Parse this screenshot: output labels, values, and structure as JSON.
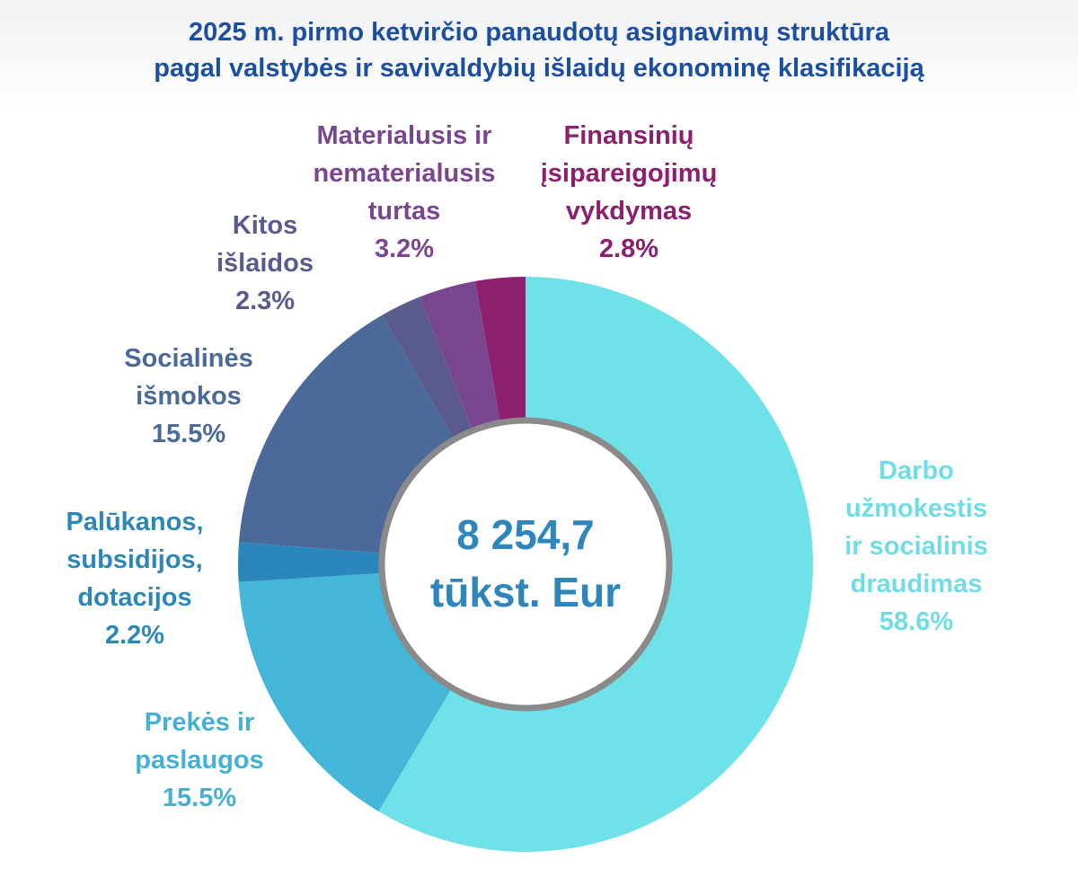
{
  "title": {
    "line1": "2025 m. pirmo ketvirčio panaudotų asignavimų struktūra",
    "line2": "pagal valstybės ir savivaldybių išlaidų ekonominę klasifikaciją"
  },
  "center": {
    "value": "8 254,7",
    "unit": "tūkst. Eur"
  },
  "chart_data": {
    "type": "pie",
    "variant": "donut",
    "unit": "%",
    "start_angle_deg": 0,
    "direction": "clockwise",
    "slices": [
      {
        "label_lines": [
          "Darbo",
          "užmokestis",
          "ir socialinis",
          "draudimas"
        ],
        "value": 58.6,
        "value_label": "58.6%",
        "color": "#6ee2e8",
        "text_color": "#6fdde6"
      },
      {
        "label_lines": [
          "Prekės ir",
          "paslaugos"
        ],
        "value": 15.5,
        "value_label": "15.5%",
        "color": "#44b6d8",
        "text_color": "#44b1d3"
      },
      {
        "label_lines": [
          "Palūkanos,",
          "subsidijos,",
          "dotacijos"
        ],
        "value": 2.2,
        "value_label": "2.2%",
        "color": "#2b86bb",
        "text_color": "#2d86b8"
      },
      {
        "label_lines": [
          "Socialinės",
          "išmokos"
        ],
        "value": 15.5,
        "value_label": "15.5%",
        "color": "#4b6a99",
        "text_color": "#4b6a99"
      },
      {
        "label_lines": [
          "Kitos",
          "išlaidos"
        ],
        "value": 2.3,
        "value_label": "2.3%",
        "color": "#5b5a8e",
        "text_color": "#5b5a8e"
      },
      {
        "label_lines": [
          "Materialusis ir",
          "nematerialusis",
          "turtas"
        ],
        "value": 3.2,
        "value_label": "3.2%",
        "color": "#7a4690",
        "text_color": "#7a4690"
      },
      {
        "label_lines": [
          "Finansinių",
          "įsipareigojimų",
          "vykdymas"
        ],
        "value": 2.8,
        "value_label": "2.8%",
        "color": "#8c1f6e",
        "text_color": "#8c1f6e"
      }
    ]
  }
}
